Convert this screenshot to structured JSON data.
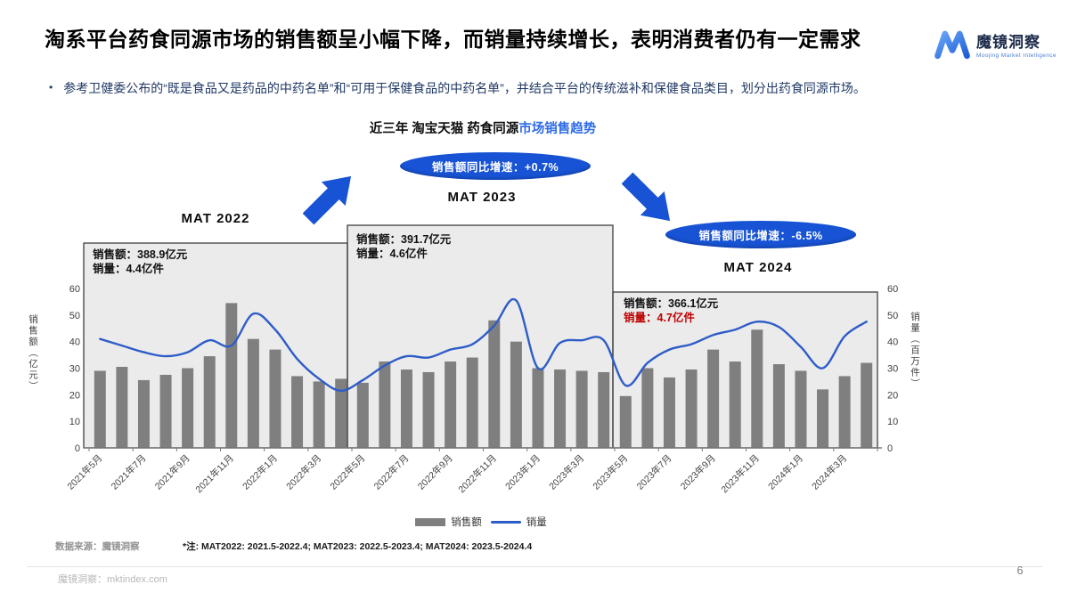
{
  "slide": {
    "title": "淘系平台药食同源市场的销售额呈小幅下降，而销量持续增长，表明消费者仍有一定需求",
    "bullet_marker": "•",
    "bullet": "参考卫健委公布的“既是食品又是药品的中药名单”和“可用于保健食品的中药名单”，并结合平台的传统滋补和保健食品类目，划分出药食同源市场。",
    "page_number": "6"
  },
  "logo": {
    "name": "魔镜洞察",
    "subtitle": "Moojing Market Intelligence"
  },
  "chart": {
    "title_black": "近三年 淘宝天猫 药食同源",
    "title_blue": "市场销售趋势",
    "periods": [
      {
        "label": "MAT 2022",
        "sales": "销售额：388.9亿元",
        "volume": "销量：4.4亿件"
      },
      {
        "label": "MAT 2023",
        "growth": "销售额同比增速：+0.7%",
        "sales": "销售额：391.7亿元",
        "volume": "销量：4.6亿件"
      },
      {
        "label": "MAT 2024",
        "growth": "销售额同比增速：-6.5%",
        "sales": "销售额：366.1亿元",
        "volume": "销量：4.7亿件"
      }
    ]
  },
  "legend": {
    "bar_label": "销售额",
    "line_label": "销量"
  },
  "footnotes": {
    "source": "数据来源：魔镜洞察",
    "note": "*注: MAT2022: 2021.5-2022.4; MAT2023: 2022.5-2023.4; MAT2024: 2023.5-2024.4"
  },
  "footer": {
    "site": "魔镜洞察：mktindex.com"
  },
  "colors": {
    "accent_blue": "#1753d4",
    "line_blue": "#2e5cc8",
    "bar_gray": "#7f7f7f",
    "box_fill": "#ebebeb",
    "box_border": "#3f3f3f",
    "negative_red": "#c00000"
  },
  "chart_data": {
    "type": "bar",
    "title": "近三年 淘宝天猫 药食同源市场销售趋势",
    "x": [
      "2021年5月",
      "2021年6月",
      "2021年7月",
      "2021年8月",
      "2021年9月",
      "2021年10月",
      "2021年11月",
      "2021年12月",
      "2022年1月",
      "2022年2月",
      "2022年3月",
      "2022年4月",
      "2022年5月",
      "2022年6月",
      "2022年7月",
      "2022年8月",
      "2022年9月",
      "2022年10月",
      "2022年11月",
      "2022年12月",
      "2023年1月",
      "2023年2月",
      "2023年3月",
      "2023年4月",
      "2023年5月",
      "2023年6月",
      "2023年7月",
      "2023年8月",
      "2023年9月",
      "2023年10月",
      "2023年11月",
      "2023年12月",
      "2024年1月",
      "2024年2月",
      "2024年3月",
      "2024年4月"
    ],
    "x_tick_every": 2,
    "series": [
      {
        "name": "销售额",
        "type": "bar",
        "color": "#7f7f7f",
        "values": [
          29,
          30.5,
          25.5,
          27.5,
          30,
          34.5,
          54.5,
          41,
          37,
          27,
          25,
          26,
          24.5,
          32.5,
          29.5,
          28.5,
          32.5,
          34,
          48,
          40,
          30,
          29.5,
          29,
          28.5,
          19.5,
          30,
          26.5,
          29.5,
          37,
          32.5,
          44.5,
          31.5,
          29,
          22,
          27,
          32
        ]
      },
      {
        "name": "销量",
        "type": "line",
        "color": "#2e5cc8",
        "values": [
          41,
          38.5,
          36,
          34.5,
          36,
          40.5,
          38.5,
          50.5,
          44.5,
          33.5,
          26,
          21.5,
          25.5,
          31,
          34.5,
          34,
          37,
          39,
          46,
          55.5,
          30,
          39.5,
          40.5,
          40.5,
          23.5,
          32,
          37,
          39,
          42.5,
          44.5,
          47.5,
          45.5,
          38,
          30,
          42,
          47.5
        ]
      }
    ],
    "y_left": {
      "label": "销售额（亿元）",
      "min": 0,
      "max": 60,
      "step": 10
    },
    "y_right": {
      "label": "销量（百万件）",
      "min": 0,
      "max": 60,
      "step": 10
    },
    "grid": false,
    "legend_position": "bottom",
    "highlight_boxes": [
      {
        "period": "MAT 2022",
        "from": "2021年5月",
        "to": "2022年4月"
      },
      {
        "period": "MAT 2023",
        "from": "2022年5月",
        "to": "2023年4月"
      },
      {
        "period": "MAT 2024",
        "from": "2023年5月",
        "to": "2024年4月"
      }
    ]
  }
}
